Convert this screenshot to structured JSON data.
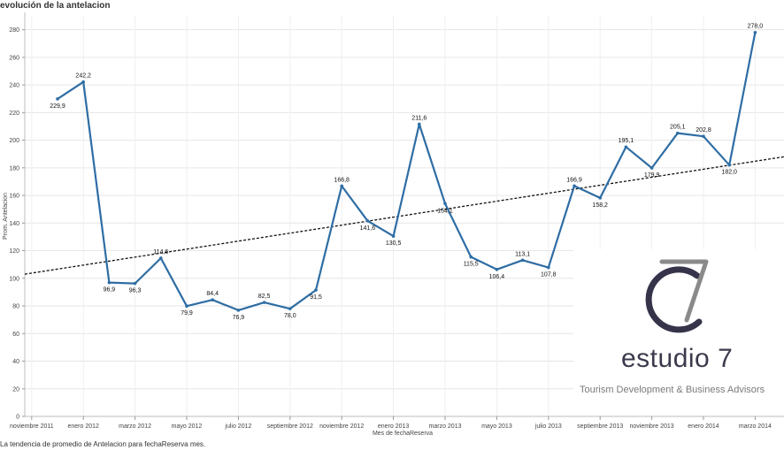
{
  "title": "evolución de la antelacion",
  "footnote": "La tendencia de promedio de Antelacion para fechaReserva mes.",
  "logo": {
    "name": "estudio 7",
    "tagline": "Tourism Development & Business Advisors"
  },
  "chart_data": {
    "type": "line",
    "xlabel": "Mes de fechaReserva",
    "ylabel": "Prom. Antelacion",
    "ylim": [
      0,
      290
    ],
    "yticks": [
      0,
      20,
      40,
      60,
      80,
      100,
      120,
      140,
      160,
      180,
      200,
      220,
      240,
      260,
      280
    ],
    "x_tick_labels": [
      "noviembre 2011",
      "enero 2012",
      "marzo 2012",
      "mayo 2012",
      "julio 2012",
      "septiembre 2012",
      "noviembre 2012",
      "enero 2013",
      "marzo 2013",
      "mayo 2013",
      "julio 2013",
      "septiembre 2013",
      "noviembre 2013",
      "enero 2014",
      "marzo 2014"
    ],
    "series": [
      {
        "color": "#2e6da4",
        "points": [
          {
            "x": "diciembre 2011",
            "y": 229.9,
            "label": "229,9"
          },
          {
            "x": "enero 2012",
            "y": 242.2,
            "label": "242,2"
          },
          {
            "x": "febrero 2012",
            "y": 96.9,
            "label": "96,9"
          },
          {
            "x": "marzo 2012",
            "y": 96.3,
            "label": "96,3"
          },
          {
            "x": "abril 2012",
            "y": 114.6,
            "label": "114,6"
          },
          {
            "x": "mayo 2012",
            "y": 79.9,
            "label": "79,9"
          },
          {
            "x": "junio 2012",
            "y": 84.4,
            "label": "84,4"
          },
          {
            "x": "julio 2012",
            "y": 76.9,
            "label": "76,9"
          },
          {
            "x": "agosto 2012",
            "y": 82.5,
            "label": "82,5"
          },
          {
            "x": "septiembre 2012",
            "y": 78.0,
            "label": "78,0"
          },
          {
            "x": "octubre 2012",
            "y": 91.5,
            "label": "91,5"
          },
          {
            "x": "noviembre 2012",
            "y": 166.8,
            "label": "166,8"
          },
          {
            "x": "diciembre 2012",
            "y": 141.6,
            "label": "141,6"
          },
          {
            "x": "enero 2013",
            "y": 130.5,
            "label": "130,5"
          },
          {
            "x": "febrero 2013",
            "y": 211.6,
            "label": "211,6"
          },
          {
            "x": "marzo 2013",
            "y": 154.1,
            "label": "154,1"
          },
          {
            "x": "abril 2013",
            "y": 115.5,
            "label": "115,5"
          },
          {
            "x": "mayo 2013",
            "y": 106.4,
            "label": "106,4"
          },
          {
            "x": "junio 2013",
            "y": 113.1,
            "label": "113,1"
          },
          {
            "x": "julio 2013",
            "y": 107.8,
            "label": "107,8"
          },
          {
            "x": "agosto 2013",
            "y": 166.9,
            "label": "166,9"
          },
          {
            "x": "septiembre 2013",
            "y": 158.2,
            "label": "158,2"
          },
          {
            "x": "octubre 2013",
            "y": 195.1,
            "label": "195,1"
          },
          {
            "x": "noviembre 2013",
            "y": 179.9,
            "label": "179,9"
          },
          {
            "x": "diciembre 2013",
            "y": 205.1,
            "label": "205,1"
          },
          {
            "x": "enero 2014",
            "y": 202.8,
            "label": "202,8"
          },
          {
            "x": "febrero 2014",
            "y": 182.0,
            "label": "182,0"
          },
          {
            "x": "marzo 2014",
            "y": 278.0,
            "label": "278,0"
          }
        ]
      }
    ],
    "trend_line": {
      "style": "dashed",
      "color": "#111111",
      "y_start": 103,
      "y_end": 188
    },
    "grid": true,
    "legend": "none"
  }
}
